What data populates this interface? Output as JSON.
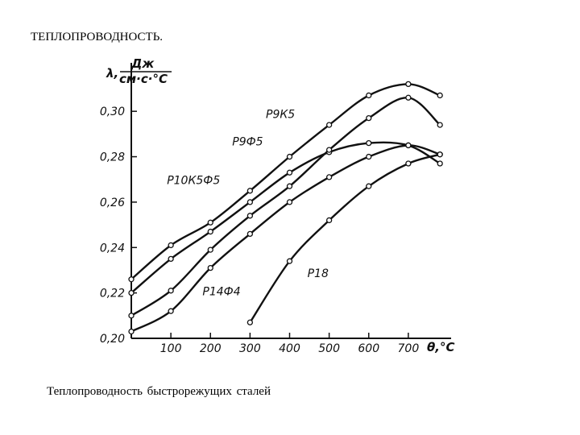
{
  "page": {
    "heading": "ТЕПЛОПРОВОДНОСТЬ.",
    "caption": "Теплопроводность   быстрорежущих сталей"
  },
  "chart_data": {
    "type": "line",
    "ylabel_symbol": "λ,",
    "ylabel_numerator": "Дж",
    "ylabel_denominator": "см·с·°С",
    "xlabel": "θ,°С",
    "xlim": [
      0,
      800
    ],
    "ylim": [
      0.2,
      0.31
    ],
    "x_ticks": [
      100,
      200,
      300,
      400,
      500,
      600,
      700
    ],
    "x_tick_labels": [
      "100",
      "200",
      "300",
      "400",
      "500",
      "600",
      "700"
    ],
    "y_ticks": [
      0.2,
      0.22,
      0.24,
      0.26,
      0.28,
      0.3
    ],
    "y_tick_labels": [
      "0,20",
      "0,22",
      "0,24",
      "0,26",
      "0,28",
      "0,30"
    ],
    "series": [
      {
        "name": "Р9К5",
        "x": [
          0,
          100,
          200,
          300,
          400,
          500,
          600,
          700,
          780
        ],
        "y": [
          0.226,
          0.241,
          0.251,
          0.265,
          0.28,
          0.294,
          0.307,
          0.312,
          0.307
        ],
        "label_at": [
          340,
          0.297
        ]
      },
      {
        "name": "Р9Ф5",
        "x": [
          0,
          100,
          200,
          300,
          400,
          500,
          600,
          700,
          780
        ],
        "y": [
          0.22,
          0.235,
          0.247,
          0.26,
          0.273,
          0.282,
          0.286,
          0.285,
          0.277
        ],
        "label_at": [
          255,
          0.285
        ]
      },
      {
        "name": "Р10К5Ф5",
        "x": [
          0,
          100,
          200,
          300,
          400,
          500,
          600,
          700,
          780
        ],
        "y": [
          0.21,
          0.221,
          0.239,
          0.254,
          0.267,
          0.283,
          0.297,
          0.306,
          0.294
        ],
        "label_at": [
          90,
          0.268
        ]
      },
      {
        "name": "Р14Ф4",
        "x": [
          0,
          100,
          200,
          300,
          400,
          500,
          600,
          700,
          780
        ],
        "y": [
          0.203,
          0.212,
          0.231,
          0.246,
          0.26,
          0.271,
          0.28,
          0.285,
          0.281
        ],
        "label_at": [
          180,
          0.219
        ]
      },
      {
        "name": "Р18",
        "x": [
          300,
          400,
          500,
          600,
          700,
          780
        ],
        "y": [
          0.207,
          0.234,
          0.252,
          0.267,
          0.277,
          0.281
        ],
        "label_at": [
          445,
          0.227
        ]
      }
    ]
  }
}
